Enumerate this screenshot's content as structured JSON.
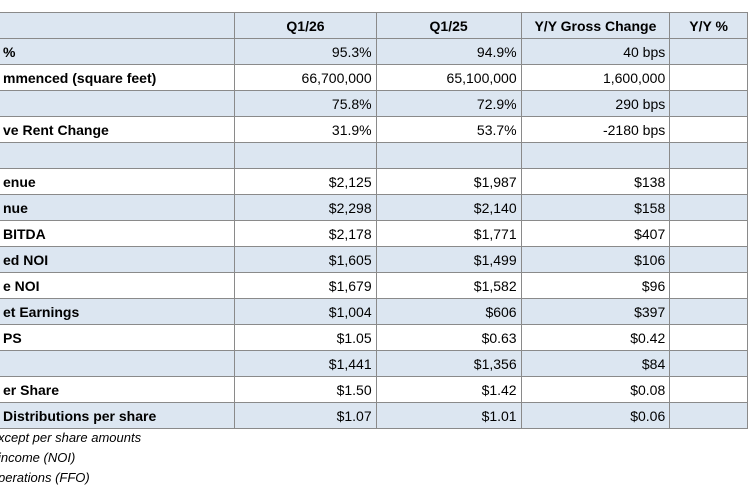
{
  "table": {
    "columns": [
      "Q1/26",
      "Q1/25",
      "Y/Y Gross Change",
      "Y/Y %"
    ],
    "rows": [
      {
        "label": "%",
        "cells": [
          "95.3%",
          "94.9%",
          "40 bps"
        ]
      },
      {
        "label": "mmenced (square feet)",
        "cells": [
          "66,700,000",
          "65,100,000",
          "1,600,000"
        ]
      },
      {
        "label": null,
        "cells": [
          "75.8%",
          "72.9%",
          "290 bps"
        ]
      },
      {
        "label": "ve Rent Change",
        "cells": [
          "31.9%",
          "53.7%",
          "-2180 bps"
        ]
      },
      {
        "label": null,
        "cells": [
          null,
          null,
          null
        ]
      },
      {
        "label": "enue",
        "cells": [
          "$2,125",
          "$1,987",
          "$138"
        ]
      },
      {
        "label": "nue",
        "cells": [
          "$2,298",
          "$2,140",
          "$158"
        ]
      },
      {
        "label": "BITDA",
        "cells": [
          "$2,178",
          "$1,771",
          "$407"
        ]
      },
      {
        "label": "ed NOI",
        "cells": [
          "$1,605",
          "$1,499",
          "$106"
        ]
      },
      {
        "label": "e NOI",
        "cells": [
          "$1,679",
          "$1,582",
          "$96"
        ]
      },
      {
        "label": "et Earnings",
        "cells": [
          "$1,004",
          "$606",
          "$397"
        ]
      },
      {
        "label": "PS",
        "cells": [
          "$1.05",
          "$0.63",
          "$0.42"
        ]
      },
      {
        "label": null,
        "cells": [
          "$1,441",
          "$1,356",
          "$84"
        ]
      },
      {
        "label": "er Share",
        "cells": [
          "$1.50",
          "$1.42",
          "$0.08"
        ]
      },
      {
        "label": "Distributions per share",
        "cells": [
          "$1.07",
          "$1.01",
          "$0.06"
        ]
      }
    ]
  },
  "footnotes": [
    "xcept per share amounts",
    "income (NOI)",
    "perations (FFO)"
  ]
}
